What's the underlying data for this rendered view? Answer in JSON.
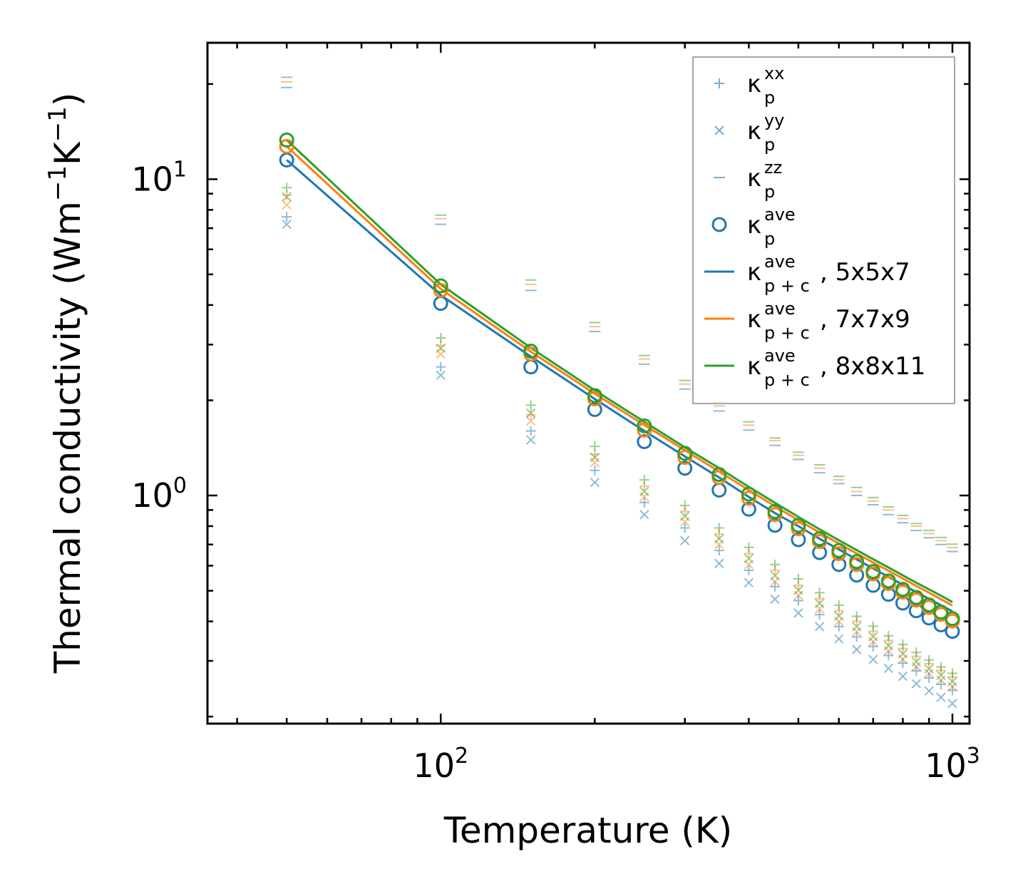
{
  "chart_data": {
    "type": "scatter",
    "title": "",
    "xlabel": "Temperature (K)",
    "ylabel_main": "Thermal conductivity (Wm",
    "ylabel_unit_1": "K",
    "ylabel_close": ")",
    "exponent_neg1": "−1",
    "x_scale": "log",
    "y_scale": "log",
    "xlim": [
      35,
      1080
    ],
    "ylim": [
      0.19,
      27
    ],
    "x_ticks": [
      {
        "value": 100,
        "base": "10",
        "exp": "2"
      },
      {
        "value": 1000,
        "base": "10",
        "exp": "3"
      }
    ],
    "y_ticks": [
      {
        "value": 1,
        "base": "10",
        "exp": "0"
      },
      {
        "value": 10,
        "base": "10",
        "exp": "1"
      }
    ],
    "x_values": [
      50,
      100,
      150,
      200,
      250,
      300,
      350,
      400,
      450,
      500,
      550,
      600,
      650,
      700,
      750,
      800,
      850,
      900,
      950,
      1000
    ],
    "series": [
      {
        "name": "kxx",
        "marker": "plus",
        "grid": "5x5x7",
        "color": "#1f77b4",
        "values": [
          7.6,
          2.55,
          1.6,
          1.2,
          0.95,
          0.79,
          0.67,
          0.58,
          0.515,
          0.465,
          0.42,
          0.385,
          0.357,
          0.333,
          0.312,
          0.295,
          0.279,
          0.265,
          0.253,
          0.242
        ]
      },
      {
        "name": "kxx",
        "marker": "plus",
        "grid": "7x7x9",
        "color": "#ff7f0e",
        "values": [
          8.9,
          2.98,
          1.8,
          1.35,
          1.07,
          0.89,
          0.755,
          0.655,
          0.58,
          0.52,
          0.472,
          0.432,
          0.4,
          0.372,
          0.348,
          0.328,
          0.31,
          0.294,
          0.28,
          0.267
        ]
      },
      {
        "name": "kxx",
        "marker": "plus",
        "grid": "8x8x11",
        "color": "#2ca02c",
        "values": [
          9.4,
          3.15,
          1.93,
          1.43,
          1.12,
          0.93,
          0.79,
          0.685,
          0.605,
          0.545,
          0.493,
          0.45,
          0.415,
          0.386,
          0.36,
          0.338,
          0.319,
          0.302,
          0.287,
          0.274
        ]
      },
      {
        "name": "kyy",
        "marker": "x",
        "grid": "5x5x7",
        "color": "#1f77b4",
        "values": [
          7.2,
          2.4,
          1.5,
          1.1,
          0.87,
          0.72,
          0.61,
          0.53,
          0.47,
          0.425,
          0.385,
          0.352,
          0.326,
          0.303,
          0.284,
          0.268,
          0.254,
          0.241,
          0.23,
          0.22
        ]
      },
      {
        "name": "kyy",
        "marker": "x",
        "grid": "7x7x9",
        "color": "#ff7f0e",
        "values": [
          8.3,
          2.8,
          1.72,
          1.27,
          0.99,
          0.825,
          0.7,
          0.605,
          0.535,
          0.483,
          0.438,
          0.4,
          0.371,
          0.345,
          0.323,
          0.304,
          0.288,
          0.274,
          0.261,
          0.249
        ]
      },
      {
        "name": "kyy",
        "marker": "x",
        "grid": "8x8x11",
        "color": "#2ca02c",
        "values": [
          8.8,
          2.92,
          1.82,
          1.32,
          1.03,
          0.86,
          0.73,
          0.632,
          0.558,
          0.502,
          0.456,
          0.416,
          0.385,
          0.358,
          0.335,
          0.316,
          0.298,
          0.283,
          0.27,
          0.258
        ]
      },
      {
        "name": "kzz",
        "marker": "hline",
        "grid": "5x5x7",
        "color": "#1f77b4",
        "values": [
          19.5,
          7.2,
          4.45,
          3.3,
          2.6,
          2.17,
          1.85,
          1.61,
          1.44,
          1.3,
          1.18,
          1.09,
          1.0,
          0.935,
          0.87,
          0.82,
          0.775,
          0.735,
          0.7,
          0.665
        ]
      },
      {
        "name": "kzz",
        "marker": "hline",
        "grid": "7x7x9",
        "color": "#ff7f0e",
        "values": [
          20.3,
          7.5,
          4.65,
          3.42,
          2.7,
          2.25,
          1.92,
          1.67,
          1.49,
          1.34,
          1.22,
          1.12,
          1.03,
          0.96,
          0.9,
          0.845,
          0.8,
          0.758,
          0.72,
          0.685
        ]
      },
      {
        "name": "kzz",
        "marker": "hline",
        "grid": "8x8x11",
        "color": "#2ca02c",
        "values": [
          21.0,
          7.7,
          4.8,
          3.52,
          2.77,
          2.31,
          1.97,
          1.71,
          1.52,
          1.37,
          1.25,
          1.15,
          1.06,
          0.985,
          0.92,
          0.865,
          0.815,
          0.775,
          0.737,
          0.702
        ]
      },
      {
        "name": "kave",
        "marker": "circle",
        "grid": "5x5x7",
        "color": "#1f77b4",
        "values": [
          11.5,
          4.05,
          2.55,
          1.87,
          1.48,
          1.22,
          1.04,
          0.905,
          0.805,
          0.725,
          0.66,
          0.605,
          0.56,
          0.52,
          0.487,
          0.457,
          0.432,
          0.41,
          0.39,
          0.372
        ]
      },
      {
        "name": "kave",
        "marker": "circle",
        "grid": "7x7x9",
        "color": "#ff7f0e",
        "values": [
          12.7,
          4.45,
          2.8,
          2.02,
          1.61,
          1.32,
          1.14,
          0.98,
          0.87,
          0.785,
          0.715,
          0.655,
          0.605,
          0.565,
          0.527,
          0.495,
          0.467,
          0.443,
          0.421,
          0.401
        ]
      },
      {
        "name": "kave",
        "marker": "circle",
        "grid": "8x8x11",
        "color": "#2ca02c",
        "values": [
          13.3,
          4.6,
          2.86,
          2.07,
          1.66,
          1.36,
          1.165,
          1.01,
          0.89,
          0.805,
          0.73,
          0.67,
          0.618,
          0.575,
          0.537,
          0.505,
          0.476,
          0.451,
          0.428,
          0.408
        ]
      },
      {
        "name": "kave p+c 5x5x7",
        "marker": "line",
        "grid": "5x5x7",
        "color": "#1f77b4",
        "values": [
          11.5,
          4.3,
          2.75,
          2.02,
          1.6,
          1.33,
          1.14,
          0.99,
          0.88,
          0.8,
          0.73,
          0.675,
          0.628,
          0.588,
          0.553,
          0.522,
          0.495,
          0.471,
          0.45,
          0.43
        ]
      },
      {
        "name": "kave p+c 7x7x9",
        "marker": "line",
        "grid": "7x7x9",
        "color": "#ff7f0e",
        "values": [
          12.7,
          4.5,
          2.85,
          2.1,
          1.67,
          1.39,
          1.19,
          1.04,
          0.925,
          0.835,
          0.763,
          0.705,
          0.656,
          0.614,
          0.578,
          0.546,
          0.518,
          0.493,
          0.47,
          0.449
        ]
      },
      {
        "name": "kave p+c 8x8x11",
        "marker": "line",
        "grid": "8x8x11",
        "color": "#2ca02c",
        "values": [
          13.3,
          4.65,
          2.93,
          2.15,
          1.71,
          1.42,
          1.22,
          1.065,
          0.948,
          0.856,
          0.782,
          0.722,
          0.672,
          0.629,
          0.592,
          0.559,
          0.53,
          0.505,
          0.482,
          0.46
        ]
      }
    ],
    "legend": {
      "placement": "top-right",
      "entries": [
        {
          "marker": "plus",
          "color": "#1f77b4",
          "base": "κ",
          "sub": "p",
          "sup": "xx",
          "tail": ""
        },
        {
          "marker": "x",
          "color": "#1f77b4",
          "base": "κ",
          "sub": "p",
          "sup": "yy",
          "tail": ""
        },
        {
          "marker": "hline",
          "color": "#1f77b4",
          "base": "κ",
          "sub": "p",
          "sup": "zz",
          "tail": ""
        },
        {
          "marker": "circle",
          "color": "#1f77b4",
          "base": "κ",
          "sub": "p",
          "sup": "ave",
          "tail": ""
        },
        {
          "marker": "line",
          "color": "#1f77b4",
          "base": "κ",
          "sub": "p + c",
          "sup": "ave",
          "tail": ", 5x5x7"
        },
        {
          "marker": "line",
          "color": "#ff7f0e",
          "base": "κ",
          "sub": "p + c",
          "sup": "ave",
          "tail": ", 7x7x9"
        },
        {
          "marker": "line",
          "color": "#2ca02c",
          "base": "κ",
          "sub": "p + c",
          "sup": "ave",
          "tail": ", 8x8x11"
        }
      ]
    }
  }
}
